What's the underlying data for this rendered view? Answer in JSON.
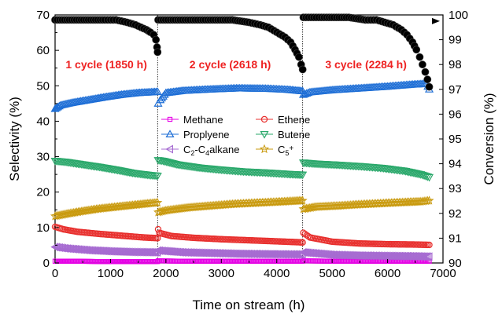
{
  "chart_data": {
    "type": "scatter",
    "xlabel": "Time on stream (h)",
    "ylabel_left": "Selectivity (%)",
    "ylabel_right": "Conversion (%)",
    "xlim": [
      0,
      7000
    ],
    "ylim_left": [
      0,
      70
    ],
    "ylim_right": [
      90,
      100
    ],
    "x_ticks": [
      "0",
      "1000",
      "2000",
      "3000",
      "4000",
      "5000",
      "6000",
      "7000"
    ],
    "y_left_ticks": [
      "0",
      "10",
      "20",
      "30",
      "40",
      "50",
      "60",
      "70"
    ],
    "y_right_ticks": [
      "90",
      "91",
      "92",
      "93",
      "94",
      "95",
      "96",
      "97",
      "98",
      "99",
      "100"
    ],
    "cycle_boundaries": [
      1850,
      4468
    ],
    "cycle_labels": [
      {
        "text": "1 cycle (1850 h)",
        "x": 925,
        "y": 56
      },
      {
        "text": "2 cycle (2618 h)",
        "x": 3160,
        "y": 56
      },
      {
        "text": "3 cycle (2284 h)",
        "x": 5610,
        "y": 56
      }
    ],
    "legend_position": "center",
    "series": [
      {
        "name": "Methane",
        "axis": "left",
        "marker": "square",
        "color": "#e600e6",
        "points": [
          [
            0,
            0.5
          ],
          [
            400,
            0.5
          ],
          [
            800,
            0.4
          ],
          [
            1200,
            0.4
          ],
          [
            1600,
            0.4
          ],
          [
            1850,
            0.4
          ],
          [
            1860,
            0.6
          ],
          [
            2300,
            0.5
          ],
          [
            2800,
            0.5
          ],
          [
            3300,
            0.5
          ],
          [
            3800,
            0.5
          ],
          [
            4300,
            0.5
          ],
          [
            4468,
            0.5
          ],
          [
            4480,
            0.6
          ],
          [
            5000,
            0.5
          ],
          [
            5500,
            0.5
          ],
          [
            6000,
            0.5
          ],
          [
            6500,
            0.5
          ],
          [
            6752,
            0.5
          ]
        ]
      },
      {
        "name": "Ethene",
        "axis": "left",
        "marker": "circle",
        "color": "#e8312f",
        "points": [
          [
            0,
            10.2
          ],
          [
            150,
            9.5
          ],
          [
            400,
            8.8
          ],
          [
            800,
            8.2
          ],
          [
            1200,
            7.7
          ],
          [
            1600,
            7.2
          ],
          [
            1850,
            7.0
          ],
          [
            1860,
            9.5
          ],
          [
            1880,
            8.5
          ],
          [
            2100,
            7.6
          ],
          [
            2500,
            7.1
          ],
          [
            3000,
            6.7
          ],
          [
            3500,
            6.4
          ],
          [
            4000,
            6.1
          ],
          [
            4468,
            5.8
          ],
          [
            4480,
            8.5
          ],
          [
            4600,
            7.2
          ],
          [
            5000,
            6.0
          ],
          [
            5500,
            5.5
          ],
          [
            6000,
            5.3
          ],
          [
            6500,
            5.2
          ],
          [
            6752,
            5.1
          ]
        ]
      },
      {
        "name": "C2-C4alkane",
        "axis": "left",
        "marker": "triangle-left",
        "color": "#a66bd1",
        "points": [
          [
            0,
            4.5
          ],
          [
            200,
            4.1
          ],
          [
            600,
            3.6
          ],
          [
            1000,
            3.3
          ],
          [
            1400,
            3.1
          ],
          [
            1850,
            3.0
          ],
          [
            1860,
            3.5
          ],
          [
            2300,
            3.0
          ],
          [
            2800,
            2.8
          ],
          [
            3300,
            2.6
          ],
          [
            3800,
            2.5
          ],
          [
            4468,
            2.4
          ],
          [
            4480,
            3.0
          ],
          [
            5000,
            2.3
          ],
          [
            5500,
            2.1
          ],
          [
            6000,
            2.0
          ],
          [
            6500,
            1.9
          ],
          [
            6752,
            1.8
          ]
        ]
      },
      {
        "name": "Proplyene",
        "axis": "left",
        "marker": "triangle-up",
        "color": "#1f6fd6",
        "points": [
          [
            0,
            43.5
          ],
          [
            100,
            44.5
          ],
          [
            300,
            45.2
          ],
          [
            600,
            46.0
          ],
          [
            900,
            46.8
          ],
          [
            1200,
            47.5
          ],
          [
            1500,
            48.0
          ],
          [
            1850,
            48.3
          ],
          [
            1860,
            45.0
          ],
          [
            1900,
            46.0
          ],
          [
            2000,
            48.0
          ],
          [
            2300,
            48.6
          ],
          [
            2800,
            49.0
          ],
          [
            3300,
            49.3
          ],
          [
            3800,
            49.2
          ],
          [
            4200,
            48.9
          ],
          [
            4468,
            48.5
          ],
          [
            4480,
            47.5
          ],
          [
            4600,
            48.2
          ],
          [
            5000,
            48.8
          ],
          [
            5500,
            49.3
          ],
          [
            6000,
            49.8
          ],
          [
            6400,
            50.3
          ],
          [
            6700,
            50.6
          ],
          [
            6752,
            49.0
          ]
        ]
      },
      {
        "name": "Butene",
        "axis": "left",
        "marker": "triangle-down",
        "color": "#2aa86b",
        "points": [
          [
            0,
            28.8
          ],
          [
            200,
            28.5
          ],
          [
            500,
            27.8
          ],
          [
            800,
            27.1
          ],
          [
            1100,
            26.3
          ],
          [
            1400,
            25.4
          ],
          [
            1700,
            24.8
          ],
          [
            1850,
            24.6
          ],
          [
            1860,
            29.0
          ],
          [
            1950,
            28.8
          ],
          [
            2200,
            27.8
          ],
          [
            2600,
            26.9
          ],
          [
            3000,
            26.3
          ],
          [
            3400,
            25.8
          ],
          [
            3800,
            25.5
          ],
          [
            4200,
            25.1
          ],
          [
            4468,
            24.9
          ],
          [
            4480,
            28.3
          ],
          [
            4700,
            28.0
          ],
          [
            5100,
            27.7
          ],
          [
            5500,
            27.3
          ],
          [
            5900,
            26.8
          ],
          [
            6300,
            26.0
          ],
          [
            6600,
            25.0
          ],
          [
            6752,
            24.2
          ]
        ]
      },
      {
        "name": "C5+",
        "axis": "left",
        "marker": "star",
        "color": "#c99a0e",
        "points": [
          [
            0,
            13.2
          ],
          [
            200,
            13.8
          ],
          [
            500,
            14.6
          ],
          [
            800,
            15.3
          ],
          [
            1100,
            15.8
          ],
          [
            1400,
            16.3
          ],
          [
            1700,
            16.8
          ],
          [
            1850,
            17.0
          ],
          [
            1860,
            14.3
          ],
          [
            2000,
            14.8
          ],
          [
            2400,
            15.6
          ],
          [
            2800,
            16.1
          ],
          [
            3200,
            16.6
          ],
          [
            3600,
            16.9
          ],
          [
            4000,
            17.2
          ],
          [
            4468,
            17.6
          ],
          [
            4480,
            15.2
          ],
          [
            4700,
            15.8
          ],
          [
            5100,
            16.1
          ],
          [
            5500,
            16.5
          ],
          [
            5900,
            16.8
          ],
          [
            6300,
            17.1
          ],
          [
            6600,
            17.3
          ],
          [
            6752,
            17.6
          ]
        ]
      },
      {
        "name": "Conversion",
        "axis": "right",
        "marker": "filled-circle",
        "color": "#000000",
        "points": [
          [
            0,
            99.8
          ],
          [
            300,
            99.8
          ],
          [
            600,
            99.8
          ],
          [
            900,
            99.8
          ],
          [
            1100,
            99.8
          ],
          [
            1300,
            99.7
          ],
          [
            1450,
            99.6
          ],
          [
            1550,
            99.5
          ],
          [
            1650,
            99.4
          ],
          [
            1720,
            99.3
          ],
          [
            1780,
            99.2
          ],
          [
            1820,
            99.0
          ],
          [
            1840,
            98.7
          ],
          [
            1850,
            98.5
          ],
          [
            1860,
            99.8
          ],
          [
            2300,
            99.8
          ],
          [
            2800,
            99.8
          ],
          [
            3200,
            99.8
          ],
          [
            3500,
            99.7
          ],
          [
            3700,
            99.6
          ],
          [
            3850,
            99.5
          ],
          [
            4000,
            99.3
          ],
          [
            4150,
            99.1
          ],
          [
            4250,
            98.9
          ],
          [
            4330,
            98.6
          ],
          [
            4400,
            98.3
          ],
          [
            4440,
            98.0
          ],
          [
            4468,
            97.8
          ],
          [
            4480,
            99.9
          ],
          [
            4900,
            99.9
          ],
          [
            5300,
            99.9
          ],
          [
            5600,
            99.8
          ],
          [
            5800,
            99.8
          ],
          [
            5950,
            99.7
          ],
          [
            6100,
            99.6
          ],
          [
            6250,
            99.4
          ],
          [
            6350,
            99.2
          ],
          [
            6450,
            98.9
          ],
          [
            6520,
            98.6
          ],
          [
            6580,
            98.3
          ],
          [
            6630,
            98.0
          ],
          [
            6680,
            97.7
          ],
          [
            6720,
            97.4
          ],
          [
            6752,
            97.1
          ]
        ]
      }
    ]
  }
}
